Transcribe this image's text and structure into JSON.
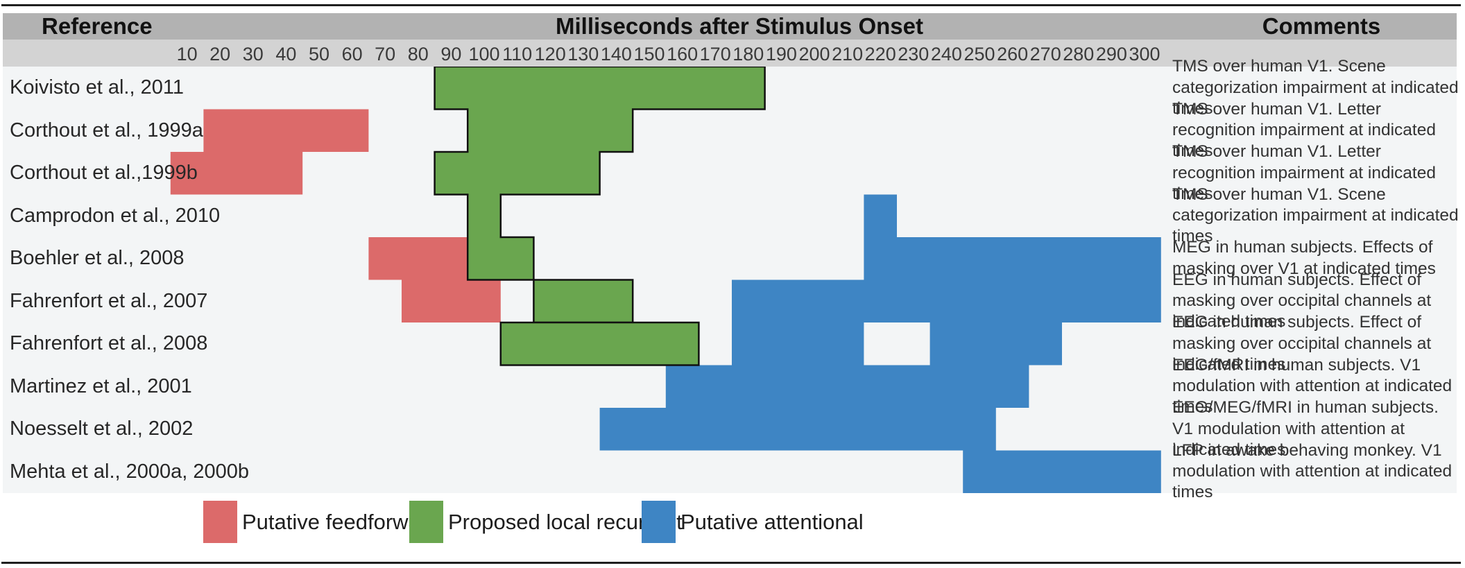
{
  "figure": {
    "header": {
      "reference": "Reference",
      "timeline_title": "Milliseconds after Stimulus Onset",
      "comments": "Comments"
    },
    "legend": [
      {
        "key": "feedforward",
        "label": "Putative feedforward",
        "color": "#dc6a6a"
      },
      {
        "key": "recurrent",
        "label": "Proposed local recurrent",
        "color": "#6aa64f"
      },
      {
        "key": "attentional",
        "label": "Putative attentional",
        "color": "#3e85c4"
      }
    ]
  },
  "chart_data": {
    "type": "bar",
    "subtype": "horizontal-interval-timeline",
    "title": "Milliseconds after Stimulus Onset",
    "xlabel": "Milliseconds after Stimulus Onset",
    "ylabel": "Reference",
    "x_axis": {
      "unit": "ms",
      "tick_start": 10,
      "tick_end": 300,
      "tick_step": 10,
      "xlim": [
        0,
        310
      ],
      "grid": false,
      "note": "bars are quantized to 10-ms bins centered on tick values"
    },
    "legend_position": "bottom",
    "colors": {
      "feedforward": "#dc6a6a",
      "recurrent": "#6aa64f",
      "attentional": "#3e85c4",
      "recurrent_outline": "#111111"
    },
    "rows": [
      {
        "reference": "Koivisto et al., 2011",
        "comment": "TMS over human V1. Scene categorization impairment at indicated times",
        "intervals": [
          {
            "type": "recurrent",
            "start_ms": 85,
            "end_ms": 185,
            "outline_group": "A"
          }
        ]
      },
      {
        "reference": "Corthout et al., 1999a",
        "comment": "TMS over human V1. Letter recognition impairment at indicated times",
        "intervals": [
          {
            "type": "feedforward",
            "start_ms": 15,
            "end_ms": 65
          },
          {
            "type": "recurrent",
            "start_ms": 95,
            "end_ms": 145,
            "outline_group": "A"
          }
        ]
      },
      {
        "reference": "Corthout et al.,1999b",
        "comment": "TMS over human V1. Letter recognition impairment at indicated times",
        "intervals": [
          {
            "type": "feedforward",
            "start_ms": 5,
            "end_ms": 45
          },
          {
            "type": "recurrent",
            "start_ms": 85,
            "end_ms": 135,
            "outline_group": "A"
          }
        ]
      },
      {
        "reference": "Camprodon et al., 2010",
        "comment": "TMS over human V1. Scene categorization impairment at indicated times",
        "intervals": [
          {
            "type": "recurrent",
            "start_ms": 95,
            "end_ms": 105,
            "outline_group": "A"
          },
          {
            "type": "attentional",
            "start_ms": 215,
            "end_ms": 225
          }
        ]
      },
      {
        "reference": "Boehler et al., 2008",
        "comment": "MEG in human subjects. Effects of masking over V1 at indicated times",
        "intervals": [
          {
            "type": "feedforward",
            "start_ms": 65,
            "end_ms": 95
          },
          {
            "type": "recurrent",
            "start_ms": 95,
            "end_ms": 115,
            "outline_group": "A"
          },
          {
            "type": "attentional",
            "start_ms": 215,
            "end_ms": 305
          }
        ]
      },
      {
        "reference": "Fahrenfort et al., 2007",
        "comment": "EEG in human subjects. Effect of masking over occipital channels at indicated times",
        "intervals": [
          {
            "type": "feedforward",
            "start_ms": 75,
            "end_ms": 105
          },
          {
            "type": "recurrent",
            "start_ms": 115,
            "end_ms": 145,
            "outline_group": "B"
          },
          {
            "type": "attentional",
            "start_ms": 175,
            "end_ms": 305
          }
        ]
      },
      {
        "reference": "Fahrenfort et al., 2008",
        "comment": "EEG in human subjects. Effect of masking over occipital channels at indicated times",
        "intervals": [
          {
            "type": "recurrent",
            "start_ms": 105,
            "end_ms": 165,
            "outline_group": "C"
          },
          {
            "type": "attentional",
            "start_ms": 175,
            "end_ms": 215
          },
          {
            "type": "attentional",
            "start_ms": 235,
            "end_ms": 275
          }
        ]
      },
      {
        "reference": "Martinez et al., 2001",
        "comment": "EEG/fMRI in human subjects. V1 modulation with attention at indicated times",
        "intervals": [
          {
            "type": "attentional",
            "start_ms": 155,
            "end_ms": 265
          }
        ]
      },
      {
        "reference": "Noesselt et al., 2002",
        "comment": "EEG/MEG/fMRI in human subjects. V1 modulation with attention at indicated times",
        "intervals": [
          {
            "type": "attentional",
            "start_ms": 135,
            "end_ms": 255
          }
        ]
      },
      {
        "reference": "Mehta et al., 2000a, 2000b",
        "comment": "LFP in awake behaving monkey. V1 modulation with attention at indicated times",
        "intervals": [
          {
            "type": "attentional",
            "start_ms": 245,
            "end_ms": 305
          }
        ]
      }
    ]
  }
}
